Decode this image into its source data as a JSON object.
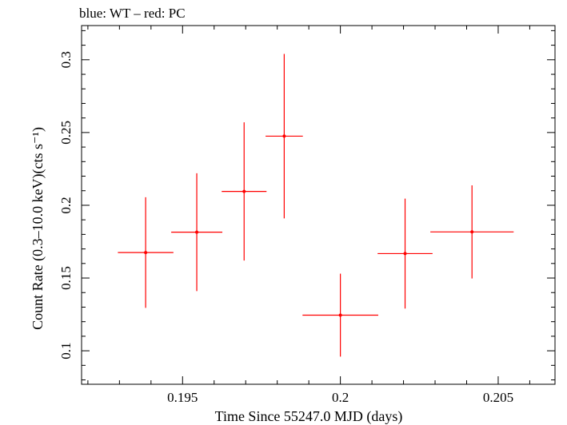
{
  "chart_data": {
    "type": "scatter",
    "title": "blue: WT – red: PC",
    "xlabel": "Time Since 55247.0 MJD (days)",
    "ylabel": "Count Rate (0.3–10.0 keV)(cts s⁻¹)",
    "xlim": [
      0.1918,
      0.2068
    ],
    "ylim": [
      0.077,
      0.3235
    ],
    "xticks": [
      0.195,
      0.2,
      0.205
    ],
    "xtick_labels": [
      "0.195",
      "0.2",
      "0.205"
    ],
    "yticks": [
      0.1,
      0.15,
      0.2,
      0.25,
      0.3
    ],
    "ytick_labels": [
      "0.1",
      "0.15",
      "0.2",
      "0.25",
      "0.3"
    ],
    "grid": false,
    "legend": "none",
    "series": [
      {
        "color": "#ff0000",
        "x": [
          0.19383,
          0.19545,
          0.19695,
          0.19822,
          0.2,
          0.20205,
          0.20417
        ],
        "y": [
          0.1675,
          0.1815,
          0.2095,
          0.2475,
          0.1245,
          0.1668,
          0.1817
        ],
        "x_err": [
          0.00088,
          0.00081,
          0.00071,
          0.00059,
          0.0012,
          0.00087,
          0.00132
        ],
        "y_err": [
          0.038,
          0.0405,
          0.0475,
          0.0565,
          0.0285,
          0.0378,
          0.032
        ]
      }
    ]
  }
}
